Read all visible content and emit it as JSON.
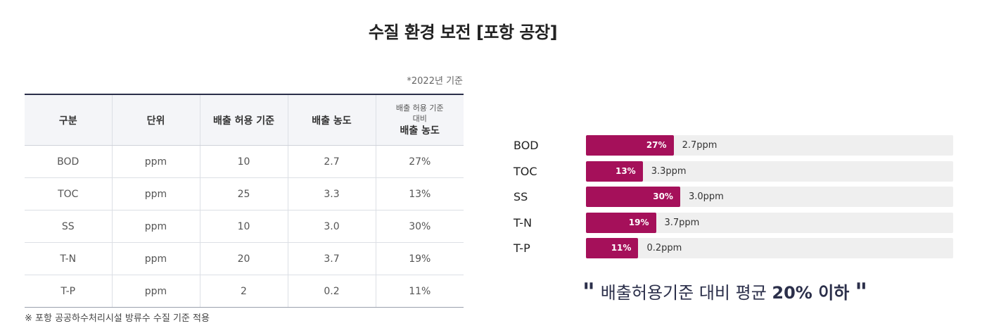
{
  "title": "수질 환경 보전 [포항 공장]",
  "basis_note": "*2022년 기준",
  "table": {
    "headers": {
      "category": "구분",
      "unit": "단위",
      "limit": "배출 허용 기준",
      "concentration": "배출 농도",
      "ratio_line1": "배출 허용 기준",
      "ratio_line2": "대비",
      "ratio_line3": "배출 농도"
    },
    "rows": [
      {
        "item": "BOD",
        "unit": "ppm",
        "limit": "10",
        "concentration": "2.7",
        "ratio": "27%"
      },
      {
        "item": "TOC",
        "unit": "ppm",
        "limit": "25",
        "concentration": "3.3",
        "ratio": "13%"
      },
      {
        "item": "SS",
        "unit": "ppm",
        "limit": "10",
        "concentration": "3.0",
        "ratio": "30%"
      },
      {
        "item": "T-N",
        "unit": "ppm",
        "limit": "20",
        "concentration": "3.7",
        "ratio": "19%"
      },
      {
        "item": "T-P",
        "unit": "ppm",
        "limit": "2",
        "concentration": "0.2",
        "ratio": "11%"
      }
    ]
  },
  "footnote": "※ 포항 공공하수처리시설 방류수 수질 기준 적용",
  "chart_data": {
    "type": "bar",
    "orientation": "horizontal",
    "categories": [
      "BOD",
      "TOC",
      "SS",
      "T-N",
      "T-P"
    ],
    "values": [
      27,
      13,
      30,
      19,
      11
    ],
    "value_labels": [
      "27%",
      "13%",
      "30%",
      "19%",
      "11%"
    ],
    "concentration_labels": [
      "2.7ppm",
      "3.3ppm",
      "3.0ppm",
      "3.7ppm",
      "0.2ppm"
    ],
    "xlim": [
      0,
      100
    ],
    "bar_color": "#a5105a",
    "track_color": "#efefef"
  },
  "summary": {
    "open_quote": "\"",
    "text": "배출허용기준 대비 평균 ",
    "highlight": "20% 이하",
    "close_quote": "\""
  }
}
